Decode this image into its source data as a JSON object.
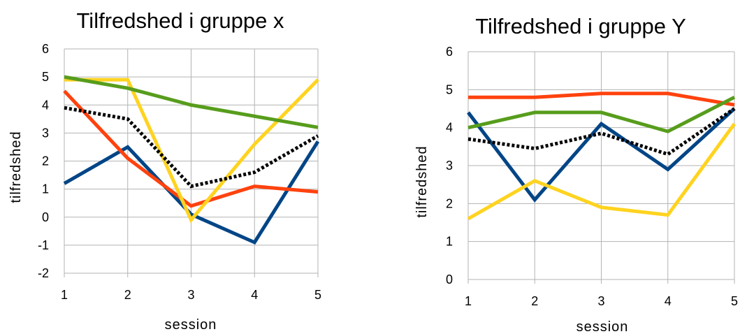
{
  "chart_data": [
    {
      "type": "line",
      "title": "Tilfredshed i gruppe x",
      "xlabel": "session",
      "ylabel": "tilfredshed",
      "x": [
        1,
        2,
        3,
        4,
        5
      ],
      "ylim": [
        -2,
        6
      ],
      "yticks": [
        -2,
        -1,
        0,
        1,
        2,
        3,
        4,
        5,
        6
      ],
      "grid": true,
      "series": [
        {
          "color": "#004586",
          "dashed": false,
          "values": [
            1.2,
            2.5,
            0.1,
            -0.9,
            2.7
          ]
        },
        {
          "color": "#ff420e",
          "dashed": false,
          "values": [
            4.5,
            2.1,
            0.4,
            1.1,
            0.9
          ]
        },
        {
          "color": "#ffd320",
          "dashed": false,
          "values": [
            4.9,
            4.9,
            -0.1,
            2.6,
            4.9
          ]
        },
        {
          "color": "#579d1c",
          "dashed": false,
          "values": [
            5.0,
            4.6,
            4.0,
            3.6,
            3.2
          ]
        },
        {
          "color": "#000000",
          "dashed": true,
          "values": [
            3.9,
            3.5,
            1.1,
            1.6,
            2.9
          ]
        }
      ]
    },
    {
      "type": "line",
      "title": "Tilfredshed i gruppe Y",
      "xlabel": "session",
      "ylabel": "tilfredshed",
      "x": [
        1,
        2,
        3,
        4,
        5
      ],
      "ylim": [
        0,
        6
      ],
      "yticks": [
        0,
        1,
        2,
        3,
        4,
        5,
        6
      ],
      "grid": true,
      "series": [
        {
          "color": "#004586",
          "dashed": false,
          "values": [
            4.4,
            2.1,
            4.1,
            2.9,
            4.5
          ]
        },
        {
          "color": "#ff420e",
          "dashed": false,
          "values": [
            4.8,
            4.8,
            4.9,
            4.9,
            4.6
          ]
        },
        {
          "color": "#ffd320",
          "dashed": false,
          "values": [
            1.6,
            2.6,
            1.9,
            1.7,
            4.1
          ]
        },
        {
          "color": "#579d1c",
          "dashed": false,
          "values": [
            4.0,
            4.4,
            4.4,
            3.9,
            4.8
          ]
        },
        {
          "color": "#000000",
          "dashed": true,
          "values": [
            3.7,
            3.45,
            3.85,
            3.3,
            4.5
          ]
        }
      ]
    }
  ]
}
